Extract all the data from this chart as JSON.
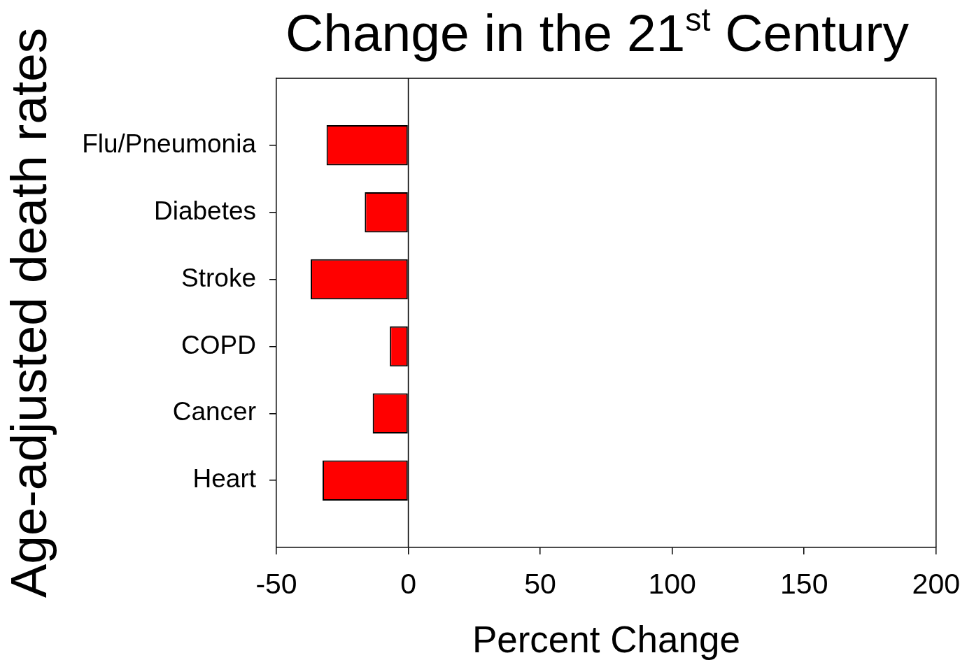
{
  "chart_data": {
    "type": "bar",
    "orientation": "horizontal",
    "title": "Change in the 21$^{st}$ Century",
    "xlabel": "Percent Change",
    "ylabel": "Age-adjusted death rates",
    "categories": [
      "Flu/Pneumonia",
      "Diabetes",
      "Stroke",
      "COPD",
      "Cancer",
      "Heart"
    ],
    "values": [
      -31,
      -16.5,
      -37,
      -7,
      -13.5,
      -32.5
    ],
    "color": "#ff0000",
    "xlim": [
      -50,
      200
    ],
    "xticks": [
      -50,
      0,
      50,
      100,
      150,
      200
    ],
    "ref_lines": [
      {
        "axis": "x",
        "value": 0,
        "color": "#000000"
      }
    ]
  }
}
